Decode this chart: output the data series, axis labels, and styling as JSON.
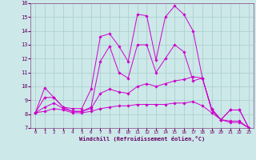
{
  "xlabel": "Windchill (Refroidissement éolien,°C)",
  "ylabel": "",
  "xlim": [
    -0.5,
    23.5
  ],
  "ylim": [
    7,
    16
  ],
  "yticks": [
    7,
    8,
    9,
    10,
    11,
    12,
    13,
    14,
    15,
    16
  ],
  "xticks": [
    0,
    1,
    2,
    3,
    4,
    5,
    6,
    7,
    8,
    9,
    10,
    11,
    12,
    13,
    14,
    15,
    16,
    17,
    18,
    19,
    20,
    21,
    22,
    23
  ],
  "background_color": "#cce8e8",
  "grid_color": "#aacccc",
  "line_color": "#cc00cc",
  "series": [
    {
      "x": [
        0,
        1,
        2,
        3,
        4,
        5,
        6,
        7,
        8,
        9,
        10,
        11,
        12,
        13,
        14,
        15,
        16,
        17,
        18,
        19,
        20,
        21,
        22,
        23
      ],
      "y": [
        8.1,
        9.9,
        9.2,
        8.5,
        8.4,
        8.4,
        9.8,
        13.6,
        13.8,
        12.9,
        11.8,
        15.2,
        15.1,
        11.9,
        15.0,
        15.8,
        15.2,
        14.0,
        10.6,
        8.4,
        7.6,
        8.3,
        8.3,
        7.0
      ]
    },
    {
      "x": [
        0,
        1,
        2,
        3,
        4,
        5,
        6,
        7,
        8,
        9,
        10,
        11,
        12,
        13,
        14,
        15,
        16,
        17,
        18,
        19,
        20,
        21,
        22,
        23
      ],
      "y": [
        8.1,
        9.2,
        9.2,
        8.5,
        8.2,
        8.2,
        8.5,
        11.8,
        12.9,
        11.0,
        10.6,
        13.0,
        13.0,
        11.0,
        12.0,
        13.0,
        12.5,
        10.4,
        10.6,
        8.3,
        7.6,
        8.3,
        8.3,
        7.0
      ]
    },
    {
      "x": [
        0,
        1,
        2,
        3,
        4,
        5,
        6,
        7,
        8,
        9,
        10,
        11,
        12,
        13,
        14,
        15,
        16,
        17,
        18,
        19,
        20,
        21,
        22,
        23
      ],
      "y": [
        8.1,
        8.5,
        8.8,
        8.4,
        8.2,
        8.2,
        8.4,
        9.5,
        9.8,
        9.6,
        9.5,
        10.0,
        10.2,
        10.0,
        10.2,
        10.4,
        10.5,
        10.7,
        10.6,
        8.3,
        7.6,
        7.5,
        7.5,
        7.0
      ]
    },
    {
      "x": [
        0,
        1,
        2,
        3,
        4,
        5,
        6,
        7,
        8,
        9,
        10,
        11,
        12,
        13,
        14,
        15,
        16,
        17,
        18,
        19,
        20,
        21,
        22,
        23
      ],
      "y": [
        8.1,
        8.2,
        8.4,
        8.3,
        8.1,
        8.1,
        8.2,
        8.4,
        8.5,
        8.6,
        8.6,
        8.7,
        8.7,
        8.7,
        8.7,
        8.8,
        8.8,
        8.9,
        8.6,
        8.1,
        7.6,
        7.4,
        7.4,
        7.0
      ]
    }
  ]
}
